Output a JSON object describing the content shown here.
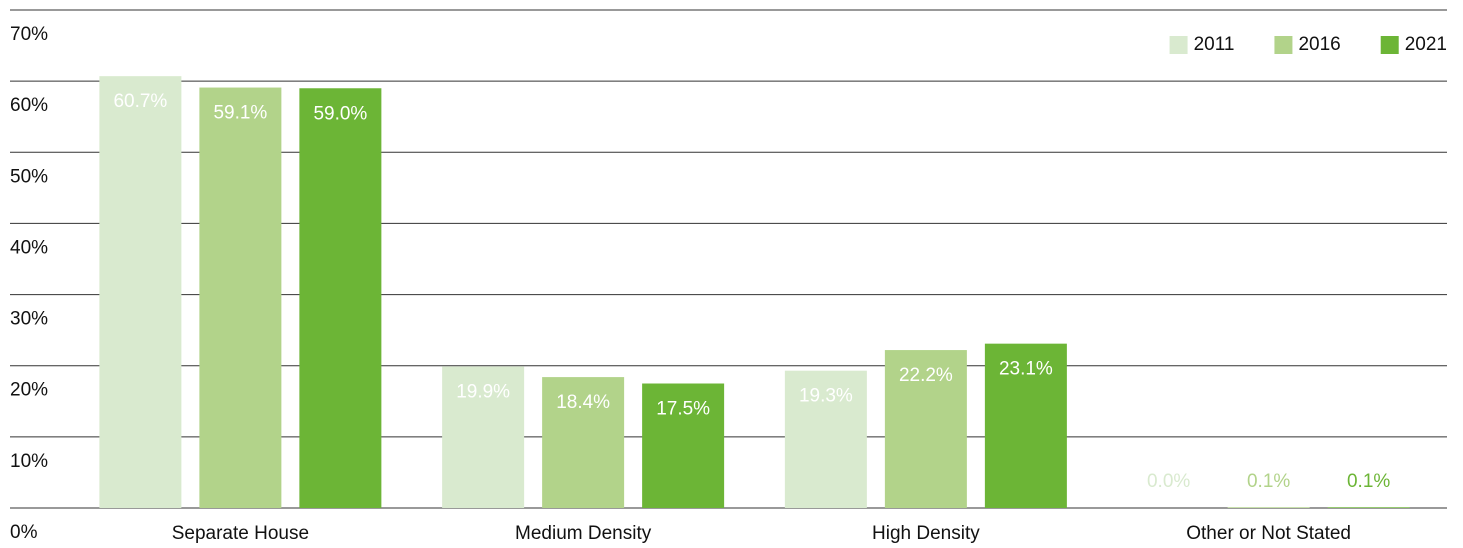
{
  "chart_data": {
    "type": "bar",
    "categories": [
      "Separate House",
      "Medium Density",
      "High Density",
      "Other or Not Stated"
    ],
    "series": [
      {
        "name": "2011",
        "color": "#d9eacf",
        "values": [
          60.7,
          19.9,
          19.3,
          0.0
        ],
        "value_labels": [
          "60.7%",
          "19.9%",
          "19.3%",
          "0.0%"
        ]
      },
      {
        "name": "2016",
        "color": "#b2d38a",
        "values": [
          59.1,
          18.4,
          22.2,
          0.1
        ],
        "value_labels": [
          "59.1%",
          "18.4%",
          "22.2%",
          "0.1%"
        ]
      },
      {
        "name": "2021",
        "color": "#6cb536",
        "values": [
          59.0,
          17.5,
          23.1,
          0.1
        ],
        "value_labels": [
          "59.0%",
          "17.5%",
          "23.1%",
          "0.1%"
        ]
      }
    ],
    "ylim": [
      0,
      70
    ],
    "yticks": [
      {
        "value": 0,
        "label": "0%"
      },
      {
        "value": 10,
        "label": "10%"
      },
      {
        "value": 20,
        "label": "20%"
      },
      {
        "value": 30,
        "label": "30%"
      },
      {
        "value": 40,
        "label": "40%"
      },
      {
        "value": 50,
        "label": "50%"
      },
      {
        "value": 60,
        "label": "60%"
      },
      {
        "value": 70,
        "label": "70%"
      }
    ],
    "grid": true,
    "legend": "top-right"
  }
}
